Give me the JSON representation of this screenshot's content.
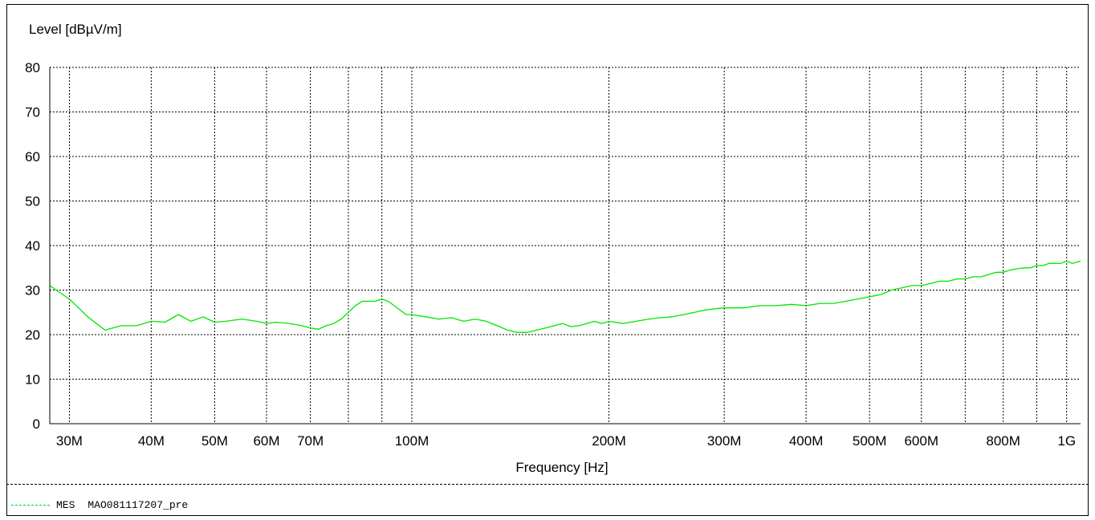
{
  "chart_data": {
    "type": "line",
    "ylabel": "Level [dBµV/m]",
    "xlabel": "Frequency [Hz]",
    "x_scale": "log",
    "xlim": [
      28,
      1050
    ],
    "ylim": [
      0,
      80
    ],
    "y_ticks": [
      0,
      10,
      20,
      30,
      40,
      50,
      60,
      70,
      80
    ],
    "x_ticks": [
      {
        "value": 30,
        "label": "30M"
      },
      {
        "value": 40,
        "label": "40M"
      },
      {
        "value": 50,
        "label": "50M"
      },
      {
        "value": 60,
        "label": "60M"
      },
      {
        "value": 70,
        "label": "70M"
      },
      {
        "value": 100,
        "label": "100M"
      },
      {
        "value": 200,
        "label": "200M"
      },
      {
        "value": 300,
        "label": "300M"
      },
      {
        "value": 400,
        "label": "400M"
      },
      {
        "value": 500,
        "label": "500M"
      },
      {
        "value": 600,
        "label": "600M"
      },
      {
        "value": 800,
        "label": "800M"
      },
      {
        "value": 1000,
        "label": "1G"
      }
    ],
    "x_gridlines": [
      30,
      40,
      50,
      60,
      70,
      80,
      90,
      100,
      200,
      300,
      400,
      500,
      600,
      700,
      800,
      900,
      1000
    ],
    "grid": true,
    "series": [
      {
        "name": "",
        "color": "#00e600",
        "x": [
          28,
          30,
          32,
          34,
          36,
          38,
          40,
          42,
          44,
          46,
          48,
          50,
          52,
          55,
          58,
          60,
          62,
          65,
          68,
          70,
          72,
          74,
          76,
          78,
          80,
          82,
          84,
          86,
          88,
          90,
          92,
          94,
          96,
          98,
          100,
          105,
          110,
          115,
          120,
          125,
          130,
          135,
          140,
          145,
          150,
          155,
          160,
          165,
          170,
          175,
          180,
          185,
          190,
          195,
          200,
          210,
          220,
          230,
          240,
          250,
          260,
          270,
          280,
          290,
          300,
          320,
          340,
          360,
          380,
          400,
          420,
          440,
          460,
          480,
          500,
          520,
          540,
          560,
          580,
          600,
          620,
          640,
          660,
          680,
          700,
          720,
          740,
          760,
          780,
          800,
          820,
          840,
          860,
          880,
          900,
          920,
          940,
          960,
          980,
          1000,
          1020,
          1050
        ],
        "y": [
          31.0,
          28.0,
          24.0,
          21.0,
          22.0,
          22.0,
          23.0,
          22.8,
          24.5,
          23.0,
          24.0,
          22.8,
          23.0,
          23.5,
          23.0,
          22.5,
          22.8,
          22.5,
          22.0,
          21.5,
          21.2,
          22.0,
          22.5,
          23.5,
          25.0,
          26.5,
          27.5,
          27.5,
          27.5,
          28.0,
          27.5,
          26.5,
          25.5,
          24.5,
          24.5,
          24.0,
          23.5,
          23.8,
          23.0,
          23.5,
          23.0,
          22.0,
          21.0,
          20.5,
          20.5,
          21.0,
          21.5,
          22.0,
          22.5,
          21.8,
          22.0,
          22.5,
          23.0,
          22.5,
          23.0,
          22.5,
          23.0,
          23.5,
          23.8,
          24.0,
          24.5,
          25.0,
          25.5,
          25.8,
          26.0,
          26.0,
          26.5,
          26.5,
          26.8,
          26.5,
          27.0,
          27.0,
          27.5,
          28.0,
          28.5,
          29.0,
          30.0,
          30.5,
          31.0,
          31.0,
          31.5,
          32.0,
          32.0,
          32.5,
          32.5,
          33.0,
          33.0,
          33.5,
          34.0,
          34.0,
          34.5,
          34.8,
          35.0,
          35.0,
          35.5,
          35.5,
          36.0,
          36.0,
          36.0,
          36.5,
          36.0,
          36.5
        ]
      }
    ]
  },
  "legend": {
    "type": "MES",
    "name": "MAO081117207_pre"
  }
}
